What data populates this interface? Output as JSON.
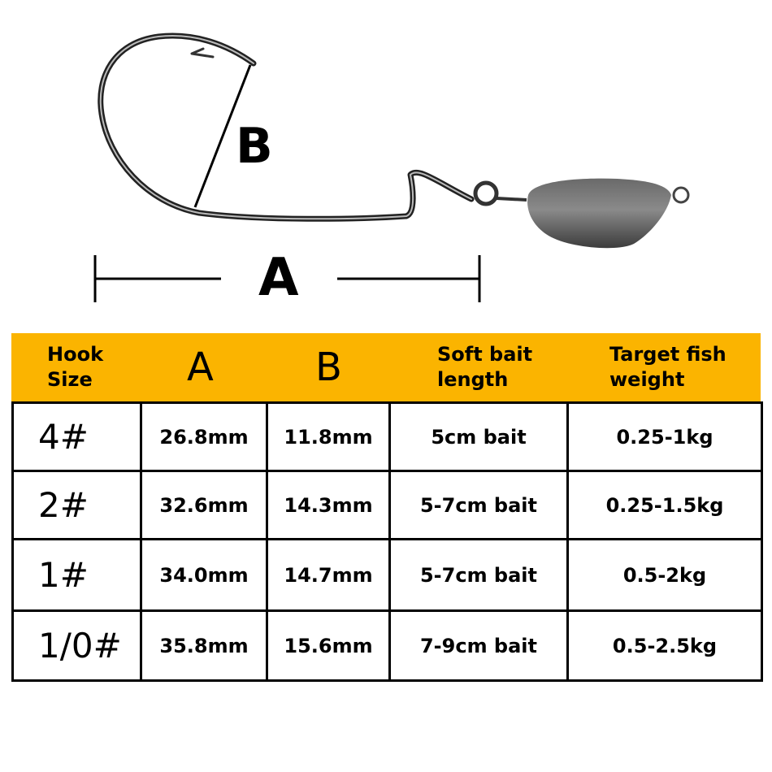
{
  "diagram": {
    "label_a": "A",
    "label_b": "B"
  },
  "colors": {
    "header": "#FBB400",
    "border": "#000000"
  },
  "table": {
    "headers": [
      {
        "line1": "Hook",
        "line2": "Size"
      },
      {
        "line1": "A"
      },
      {
        "line1": "B"
      },
      {
        "line1": "Soft bait",
        "line2": "length"
      },
      {
        "line1": "Target fish",
        "line2": "weight"
      }
    ],
    "rows": [
      [
        "4#",
        "26.8mm",
        "11.8mm",
        "5cm bait",
        "0.25-1kg"
      ],
      [
        "2#",
        "32.6mm",
        "14.3mm",
        "5-7cm bait",
        "0.25-1.5kg"
      ],
      [
        "1#",
        "34.0mm",
        "14.7mm",
        "5-7cm bait",
        "0.5-2kg"
      ],
      [
        "1/0#",
        "35.8mm",
        "15.6mm",
        "7-9cm bait",
        "0.5-2.5kg"
      ]
    ]
  }
}
